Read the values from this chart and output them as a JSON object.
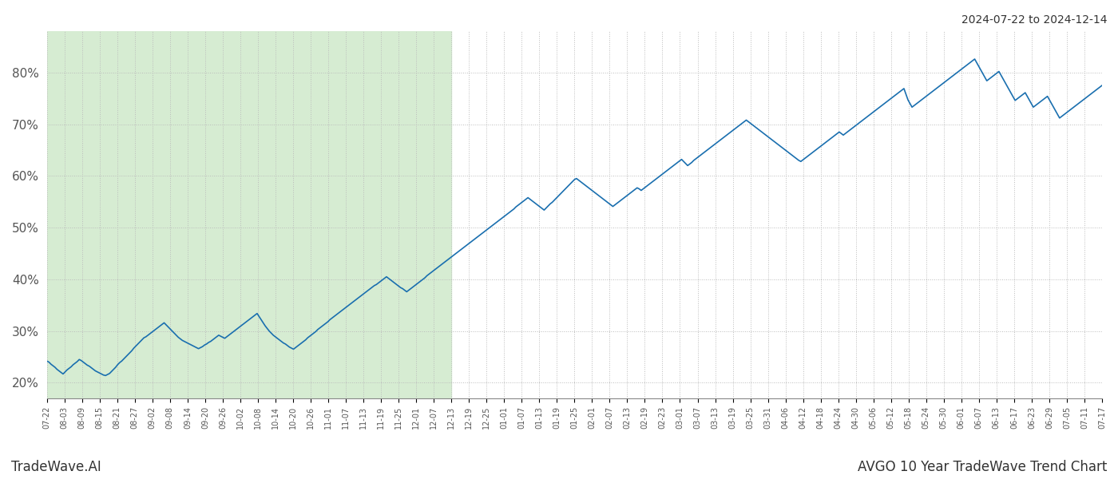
{
  "title_top_right": "2024-07-22 to 2024-12-14",
  "footer_left": "TradeWave.AI",
  "footer_right": "AVGO 10 Year TradeWave Trend Chart",
  "line_color": "#1a6faf",
  "line_width": 1.2,
  "shaded_region_color": "#d6ecd2",
  "shaded_region_alpha": 1.0,
  "background_color": "#ffffff",
  "grid_color": "#bbbbbb",
  "grid_linestyle": ":",
  "ylim": [
    17,
    88
  ],
  "yticks": [
    20,
    30,
    40,
    50,
    60,
    70,
    80
  ],
  "x_labels": [
    "07-22",
    "08-03",
    "08-09",
    "08-15",
    "08-21",
    "08-27",
    "09-02",
    "09-08",
    "09-14",
    "09-20",
    "09-26",
    "10-02",
    "10-08",
    "10-14",
    "10-20",
    "10-26",
    "11-01",
    "11-07",
    "11-13",
    "11-19",
    "11-25",
    "12-01",
    "12-07",
    "12-13",
    "12-19",
    "12-25",
    "01-01",
    "01-07",
    "01-13",
    "01-19",
    "01-25",
    "02-01",
    "02-07",
    "02-13",
    "02-19",
    "02-23",
    "03-01",
    "03-07",
    "03-13",
    "03-19",
    "03-25",
    "03-31",
    "04-06",
    "04-12",
    "04-18",
    "04-24",
    "04-30",
    "05-06",
    "05-12",
    "05-18",
    "05-24",
    "05-30",
    "06-01",
    "06-07",
    "06-13",
    "06-17",
    "06-23",
    "06-29",
    "07-05",
    "07-11",
    "07-17"
  ],
  "shaded_x_end_label": "12-13",
  "y_values": [
    24.2,
    24.0,
    23.6,
    23.3,
    23.0,
    22.6,
    22.3,
    22.0,
    21.7,
    22.1,
    22.5,
    22.8,
    23.1,
    23.5,
    23.8,
    24.1,
    24.5,
    24.3,
    24.0,
    23.7,
    23.4,
    23.2,
    22.9,
    22.6,
    22.3,
    22.1,
    21.9,
    21.7,
    21.5,
    21.4,
    21.6,
    21.8,
    22.2,
    22.6,
    23.0,
    23.5,
    23.9,
    24.2,
    24.6,
    25.0,
    25.4,
    25.8,
    26.2,
    26.7,
    27.1,
    27.5,
    27.9,
    28.3,
    28.7,
    28.9,
    29.2,
    29.5,
    29.8,
    30.1,
    30.4,
    30.7,
    31.0,
    31.3,
    31.6,
    31.2,
    30.8,
    30.4,
    30.0,
    29.6,
    29.2,
    28.8,
    28.5,
    28.2,
    28.0,
    27.8,
    27.6,
    27.4,
    27.2,
    27.0,
    26.8,
    26.6,
    26.8,
    27.0,
    27.3,
    27.5,
    27.8,
    28.0,
    28.3,
    28.6,
    28.9,
    29.2,
    29.0,
    28.8,
    28.6,
    28.9,
    29.2,
    29.5,
    29.8,
    30.1,
    30.4,
    30.7,
    31.0,
    31.3,
    31.6,
    31.9,
    32.2,
    32.5,
    32.8,
    33.1,
    33.4,
    32.8,
    32.2,
    31.6,
    31.0,
    30.5,
    30.0,
    29.6,
    29.2,
    28.9,
    28.6,
    28.3,
    28.0,
    27.7,
    27.5,
    27.2,
    26.9,
    26.7,
    26.5,
    26.8,
    27.1,
    27.4,
    27.7,
    28.0,
    28.3,
    28.7,
    29.0,
    29.3,
    29.6,
    29.9,
    30.3,
    30.6,
    30.9,
    31.2,
    31.5,
    31.8,
    32.2,
    32.5,
    32.8,
    33.1,
    33.4,
    33.7,
    34.0,
    34.3,
    34.6,
    34.9,
    35.2,
    35.5,
    35.8,
    36.1,
    36.4,
    36.7,
    37.0,
    37.3,
    37.6,
    37.9,
    38.2,
    38.5,
    38.8,
    39.0,
    39.3,
    39.6,
    39.9,
    40.2,
    40.5,
    40.2,
    39.9,
    39.6,
    39.3,
    39.0,
    38.7,
    38.4,
    38.2,
    37.9,
    37.6,
    37.9,
    38.2,
    38.5,
    38.8,
    39.1,
    39.4,
    39.7,
    40.0,
    40.3,
    40.7,
    41.0,
    41.3,
    41.6,
    41.9,
    42.2,
    42.5,
    42.8,
    43.1,
    43.4,
    43.7,
    44.0,
    44.3,
    44.6,
    44.9,
    45.2,
    45.5,
    45.8,
    46.1,
    46.4,
    46.7,
    47.0,
    47.3,
    47.6,
    47.9,
    48.2,
    48.5,
    48.8,
    49.1,
    49.4,
    49.7,
    50.0,
    50.3,
    50.6,
    50.9,
    51.2,
    51.5,
    51.8,
    52.1,
    52.4,
    52.7,
    53.0,
    53.3,
    53.6,
    54.0,
    54.3,
    54.6,
    54.9,
    55.2,
    55.5,
    55.8,
    55.5,
    55.2,
    54.9,
    54.6,
    54.3,
    54.0,
    53.7,
    53.4,
    53.8,
    54.2,
    54.6,
    54.9,
    55.3,
    55.7,
    56.1,
    56.5,
    56.9,
    57.3,
    57.7,
    58.1,
    58.5,
    58.9,
    59.3,
    59.5,
    59.2,
    58.9,
    58.6,
    58.3,
    58.0,
    57.7,
    57.4,
    57.1,
    56.8,
    56.5,
    56.2,
    55.9,
    55.6,
    55.3,
    55.0,
    54.7,
    54.4,
    54.1,
    54.4,
    54.7,
    55.0,
    55.3,
    55.6,
    55.9,
    56.2,
    56.5,
    56.8,
    57.1,
    57.4,
    57.7,
    57.5,
    57.2,
    57.5,
    57.8,
    58.1,
    58.4,
    58.7,
    59.0,
    59.3,
    59.6,
    59.9,
    60.2,
    60.5,
    60.8,
    61.1,
    61.4,
    61.7,
    62.0,
    62.3,
    62.6,
    62.9,
    63.2,
    62.8,
    62.4,
    62.0,
    62.3,
    62.6,
    63.0,
    63.3,
    63.6,
    63.9,
    64.2,
    64.5,
    64.8,
    65.1,
    65.4,
    65.7,
    66.0,
    66.3,
    66.6,
    66.9,
    67.2,
    67.5,
    67.8,
    68.1,
    68.4,
    68.7,
    69.0,
    69.3,
    69.6,
    69.9,
    70.2,
    70.5,
    70.8,
    70.5,
    70.2,
    69.9,
    69.6,
    69.3,
    69.0,
    68.7,
    68.4,
    68.1,
    67.8,
    67.5,
    67.2,
    66.9,
    66.6,
    66.3,
    66.0,
    65.7,
    65.4,
    65.1,
    64.8,
    64.5,
    64.2,
    63.9,
    63.6,
    63.3,
    63.0,
    62.8,
    63.1,
    63.4,
    63.7,
    64.0,
    64.3,
    64.6,
    64.9,
    65.2,
    65.5,
    65.8,
    66.1,
    66.4,
    66.7,
    67.0,
    67.3,
    67.6,
    67.9,
    68.2,
    68.5,
    68.2,
    67.9,
    68.2,
    68.5,
    68.8,
    69.1,
    69.4,
    69.7,
    70.0,
    70.3,
    70.6,
    70.9,
    71.2,
    71.5,
    71.8,
    72.1,
    72.4,
    72.7,
    73.0,
    73.3,
    73.6,
    73.9,
    74.2,
    74.5,
    74.8,
    75.1,
    75.4,
    75.7,
    76.0,
    76.3,
    76.6,
    76.9,
    75.8,
    74.7,
    74.0,
    73.3,
    73.6,
    73.9,
    74.2,
    74.5,
    74.8,
    75.1,
    75.4,
    75.7,
    76.0,
    76.3,
    76.6,
    76.9,
    77.2,
    77.5,
    77.8,
    78.1,
    78.4,
    78.7,
    79.0,
    79.3,
    79.6,
    79.9,
    80.2,
    80.5,
    80.8,
    81.1,
    81.4,
    81.7,
    82.0,
    82.3,
    82.6,
    81.9,
    81.2,
    80.5,
    79.8,
    79.1,
    78.4,
    78.7,
    79.0,
    79.3,
    79.6,
    79.9,
    80.2,
    79.5,
    78.8,
    78.1,
    77.4,
    76.7,
    76.0,
    75.3,
    74.6,
    74.9,
    75.2,
    75.5,
    75.8,
    76.1,
    75.4,
    74.7,
    74.0,
    73.3,
    73.6,
    73.9,
    74.2,
    74.5,
    74.8,
    75.1,
    75.4,
    74.7,
    74.0,
    73.3,
    72.6,
    71.9,
    71.2,
    71.5,
    71.8,
    72.1,
    72.4,
    72.7,
    73.0,
    73.3,
    73.6,
    73.9,
    74.2,
    74.5,
    74.8,
    75.1,
    75.4,
    75.7,
    76.0,
    76.3,
    76.6,
    76.9,
    77.2,
    77.5
  ]
}
